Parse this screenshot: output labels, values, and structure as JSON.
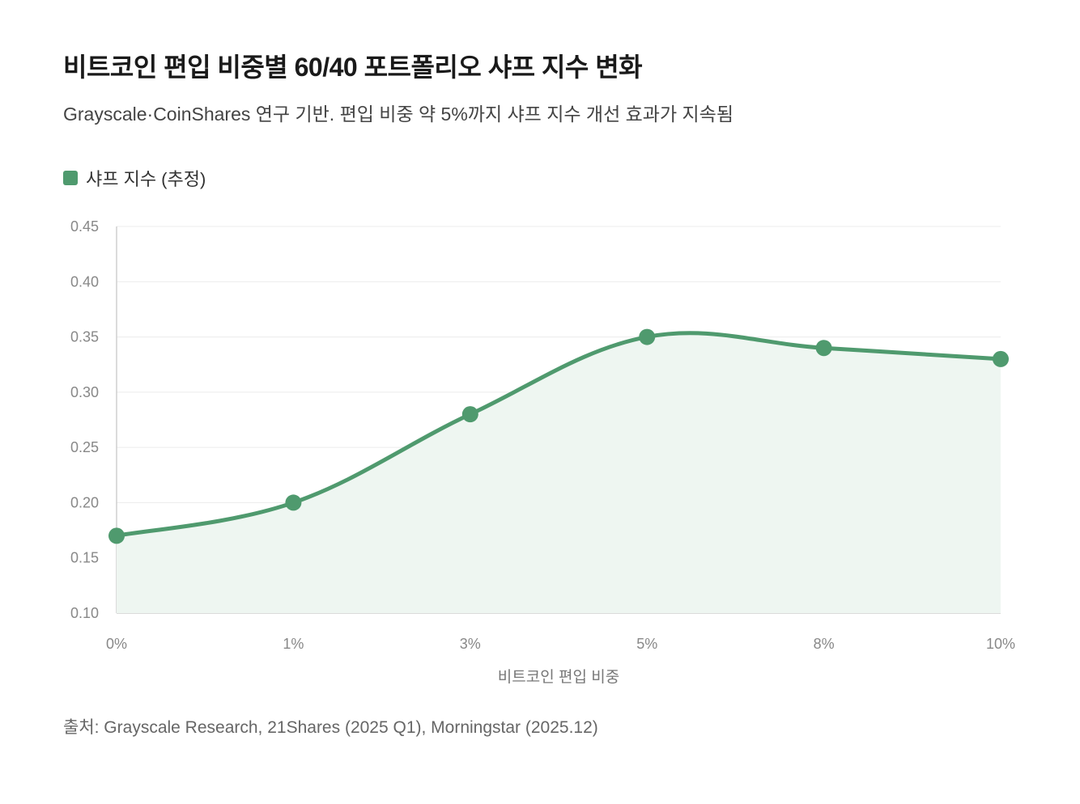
{
  "header": {
    "title": "비트코인 편입 비중별 60/40 포트폴리오 샤프 지수 변화",
    "subtitle": "Grayscale·CoinShares 연구 기반. 편입 비중 약 5%까지 샤프 지수 개선 효과가 지속됨"
  },
  "legend": {
    "label": "샤프 지수 (추정)"
  },
  "colors": {
    "series": "#4f9a6e",
    "fill": "#eef6f1",
    "grid": "#ececec",
    "axis": "#cfcfcf"
  },
  "chart_data": {
    "type": "line",
    "categories": [
      "0%",
      "1%",
      "3%",
      "5%",
      "8%",
      "10%"
    ],
    "series": [
      {
        "name": "샤프 지수 (추정)",
        "values": [
          0.17,
          0.2,
          0.28,
          0.35,
          0.34,
          0.33
        ]
      }
    ],
    "ylim": [
      0.1,
      0.45
    ],
    "yticks": [
      "0.10",
      "0.15",
      "0.20",
      "0.25",
      "0.30",
      "0.35",
      "0.40",
      "0.45"
    ],
    "xlabel": "비트코인 편입 비중",
    "ylabel": "",
    "grid": true,
    "area_fill": true,
    "smooth": true,
    "legend_position": "top-left"
  },
  "footer": {
    "source": "출처: Grayscale Research, 21Shares (2025 Q1), Morningstar (2025.12)"
  }
}
